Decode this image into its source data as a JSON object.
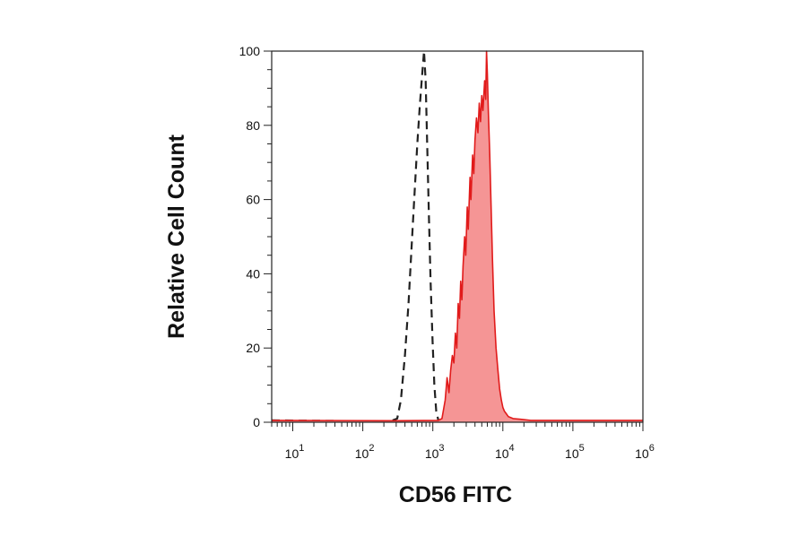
{
  "chart_data": {
    "type": "area",
    "xlabel": "CD56 FITC",
    "ylabel": "Relative Cell Count",
    "x_scale": "log",
    "xlim": [
      5,
      1000000
    ],
    "ylim": [
      0,
      100
    ],
    "x_ticks": [
      {
        "value": 10,
        "base": "10",
        "exp": "1"
      },
      {
        "value": 100,
        "base": "10",
        "exp": "2"
      },
      {
        "value": 1000,
        "base": "10",
        "exp": "3"
      },
      {
        "value": 10000,
        "base": "10",
        "exp": "4"
      },
      {
        "value": 100000,
        "base": "10",
        "exp": "5"
      },
      {
        "value": 1000000,
        "base": "10",
        "exp": "6"
      }
    ],
    "y_ticks": [
      0,
      20,
      40,
      60,
      80,
      100
    ],
    "grid": false,
    "series": [
      {
        "style": "dashed-line",
        "color": "#222222",
        "points": [
          [
            5,
            0.5
          ],
          [
            100,
            0.3
          ],
          [
            250,
            0.3
          ],
          [
            310,
            1
          ],
          [
            350,
            6
          ],
          [
            400,
            18
          ],
          [
            450,
            32
          ],
          [
            500,
            48
          ],
          [
            550,
            62
          ],
          [
            600,
            75
          ],
          [
            650,
            85
          ],
          [
            700,
            93
          ],
          [
            750,
            100
          ],
          [
            790,
            92
          ],
          [
            830,
            75
          ],
          [
            880,
            55
          ],
          [
            930,
            38
          ],
          [
            990,
            22
          ],
          [
            1050,
            10
          ],
          [
            1120,
            3
          ],
          [
            1200,
            0.5
          ],
          [
            1300,
            0.2
          ]
        ]
      },
      {
        "style": "filled",
        "color": "#e11b1b",
        "fill": "#f59595",
        "points": [
          [
            5,
            0.5
          ],
          [
            300,
            0.4
          ],
          [
            1200,
            0.5
          ],
          [
            1350,
            1
          ],
          [
            1500,
            6
          ],
          [
            1600,
            12
          ],
          [
            1700,
            8
          ],
          [
            1800,
            14
          ],
          [
            1900,
            18
          ],
          [
            2000,
            16
          ],
          [
            2100,
            24
          ],
          [
            2200,
            20
          ],
          [
            2300,
            32
          ],
          [
            2400,
            28
          ],
          [
            2500,
            38
          ],
          [
            2600,
            33
          ],
          [
            2700,
            42
          ],
          [
            2850,
            50
          ],
          [
            2950,
            45
          ],
          [
            3100,
            58
          ],
          [
            3200,
            52
          ],
          [
            3400,
            66
          ],
          [
            3500,
            60
          ],
          [
            3700,
            72
          ],
          [
            3850,
            67
          ],
          [
            4000,
            76
          ],
          [
            4200,
            82
          ],
          [
            4400,
            78
          ],
          [
            4600,
            86
          ],
          [
            4800,
            81
          ],
          [
            5000,
            88
          ],
          [
            5200,
            84
          ],
          [
            5500,
            92
          ],
          [
            5700,
            87
          ],
          [
            5850,
            100
          ],
          [
            6000,
            94
          ],
          [
            6200,
            84
          ],
          [
            6500,
            72
          ],
          [
            6800,
            58
          ],
          [
            7100,
            44
          ],
          [
            7500,
            30
          ],
          [
            8000,
            20
          ],
          [
            8500,
            14
          ],
          [
            9000,
            9
          ],
          [
            9500,
            6
          ],
          [
            10000,
            4
          ],
          [
            10500,
            3
          ],
          [
            11000,
            2.5
          ],
          [
            12000,
            1.5
          ],
          [
            14000,
            1
          ],
          [
            18000,
            0.8
          ],
          [
            25000,
            0.5
          ],
          [
            100000,
            0.5
          ],
          [
            1000000,
            0.5
          ]
        ]
      }
    ]
  }
}
